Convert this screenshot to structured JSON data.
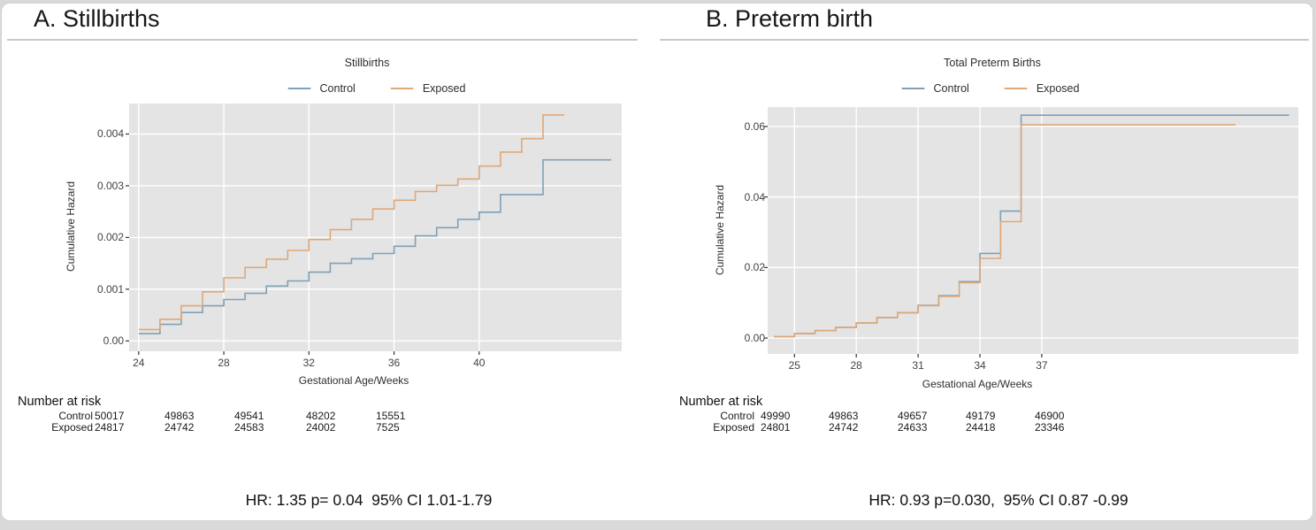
{
  "page": {
    "background": "#d9d9d9",
    "card_background": "#ffffff"
  },
  "colors": {
    "control": "#7fa0b8",
    "exposed": "#dfa878",
    "plot_background": "#e4e4e4",
    "grid": "#ffffff",
    "tick_mark": "#333333"
  },
  "chart_data": [
    {
      "type": "line",
      "variant": "cumulative-hazard-step",
      "panel_label": "A. Stillbirths",
      "title": "Stillbirths",
      "xlabel": "Gestational Age/Weeks",
      "ylabel": "Cumulative Hazard",
      "legend_position": "top",
      "grid": true,
      "xlim": [
        23.55,
        46.7
      ],
      "ylim": [
        -0.0002,
        0.00459
      ],
      "x_ticks": [
        {
          "v": 24,
          "label": "24"
        },
        {
          "v": 28,
          "label": "28"
        },
        {
          "v": 32,
          "label": "32"
        },
        {
          "v": 36,
          "label": "36"
        },
        {
          "v": 40,
          "label": "40"
        }
      ],
      "y_ticks": [
        {
          "v": 0,
          "label": "0.00"
        },
        {
          "v": 0.001,
          "label": "0.001"
        },
        {
          "v": 0.002,
          "label": "0.002"
        },
        {
          "v": 0.003,
          "label": "0.003"
        },
        {
          "v": 0.004,
          "label": "0.004"
        }
      ],
      "series": [
        {
          "name": "Control",
          "color_key": "control",
          "steps": [
            [
              24,
              0.00014
            ],
            [
              25,
              0.00032
            ],
            [
              26,
              0.00055
            ],
            [
              27,
              0.00068
            ],
            [
              28,
              0.0008
            ],
            [
              29,
              0.00092
            ],
            [
              30,
              0.00106
            ],
            [
              31,
              0.00116
            ],
            [
              32,
              0.00133
            ],
            [
              33,
              0.0015
            ],
            [
              34,
              0.00159
            ],
            [
              35,
              0.00169
            ],
            [
              36,
              0.00183
            ],
            [
              37,
              0.00203
            ],
            [
              38,
              0.00219
            ],
            [
              39,
              0.00235
            ],
            [
              40,
              0.00249
            ],
            [
              41,
              0.00283
            ],
            [
              43,
              0.0035
            ],
            [
              46.2,
              0.0035
            ]
          ]
        },
        {
          "name": "Exposed",
          "color_key": "exposed",
          "steps": [
            [
              24,
              0.00022
            ],
            [
              25,
              0.00042
            ],
            [
              26,
              0.00068
            ],
            [
              27,
              0.00095
            ],
            [
              28,
              0.00122
            ],
            [
              29,
              0.00142
            ],
            [
              30,
              0.00158
            ],
            [
              31,
              0.00175
            ],
            [
              32,
              0.00196
            ],
            [
              33,
              0.00215
            ],
            [
              34,
              0.00235
            ],
            [
              35,
              0.00255
            ],
            [
              36,
              0.00272
            ],
            [
              37,
              0.00289
            ],
            [
              38,
              0.00301
            ],
            [
              39,
              0.00313
            ],
            [
              40,
              0.00338
            ],
            [
              41,
              0.00365
            ],
            [
              42,
              0.00391
            ],
            [
              43,
              0.00437
            ],
            [
              44,
              0.00437
            ]
          ]
        }
      ],
      "number_at_risk": {
        "title": "Number at risk",
        "rows": [
          {
            "label": "Control",
            "values": [
              "50017",
              "49863",
              "49541",
              "48202",
              "15551"
            ]
          },
          {
            "label": "Exposed",
            "values": [
              "24817",
              "24742",
              "24583",
              "24002",
              "7525"
            ]
          }
        ]
      },
      "stats": "HR: 1.35 p= 0.04  95% CI 1.01-1.79"
    },
    {
      "type": "line",
      "variant": "cumulative-hazard-step",
      "panel_label": "B. Preterm birth",
      "title": "Total Preterm Births",
      "xlabel": "Gestational Age/Weeks",
      "ylabel": "Cumulative Hazard",
      "legend_position": "top",
      "grid": true,
      "xlim": [
        23.7,
        49.45
      ],
      "ylim": [
        -0.0045,
        0.0655
      ],
      "x_ticks": [
        {
          "v": 25,
          "label": "25"
        },
        {
          "v": 28,
          "label": "28"
        },
        {
          "v": 31,
          "label": "31"
        },
        {
          "v": 34,
          "label": "34"
        },
        {
          "v": 37,
          "label": "37"
        }
      ],
      "y_ticks": [
        {
          "v": 0,
          "label": "0.00"
        },
        {
          "v": 0.02,
          "label": "0.02"
        },
        {
          "v": 0.04,
          "label": "0.04"
        },
        {
          "v": 0.06,
          "label": "0.06"
        }
      ],
      "series": [
        {
          "name": "Control",
          "color_key": "control",
          "steps": [
            [
              24,
              0.0004
            ],
            [
              25,
              0.0013
            ],
            [
              26,
              0.0021
            ],
            [
              27,
              0.003
            ],
            [
              28,
              0.0043
            ],
            [
              29,
              0.0058
            ],
            [
              30,
              0.0072
            ],
            [
              31,
              0.0093
            ],
            [
              32,
              0.012
            ],
            [
              33,
              0.016
            ],
            [
              34,
              0.024
            ],
            [
              35,
              0.036
            ],
            [
              36,
              0.0632
            ],
            [
              49,
              0.0632
            ]
          ]
        },
        {
          "name": "Exposed",
          "color_key": "exposed",
          "steps": [
            [
              24,
              0.0004
            ],
            [
              25,
              0.0013
            ],
            [
              26,
              0.0021
            ],
            [
              27,
              0.003
            ],
            [
              28,
              0.0043
            ],
            [
              29,
              0.0058
            ],
            [
              30,
              0.0072
            ],
            [
              31,
              0.0092
            ],
            [
              32,
              0.0118
            ],
            [
              33,
              0.0157
            ],
            [
              34,
              0.0226
            ],
            [
              35,
              0.033
            ],
            [
              36,
              0.0605
            ],
            [
              46.4,
              0.0605
            ]
          ]
        }
      ],
      "number_at_risk": {
        "title": "Number at risk",
        "rows": [
          {
            "label": "Control",
            "values": [
              "49990",
              "49863",
              "49657",
              "49179",
              "46900"
            ]
          },
          {
            "label": "Exposed",
            "values": [
              "24801",
              "24742",
              "24633",
              "24418",
              "23346"
            ]
          }
        ]
      },
      "stats": "HR: 0.93 p=0.030,  95% CI 0.87 -0.99"
    }
  ]
}
